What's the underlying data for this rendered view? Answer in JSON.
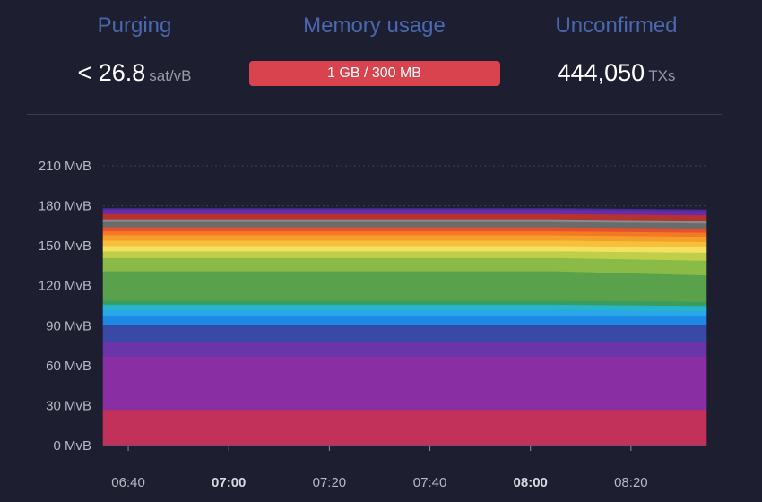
{
  "stats": {
    "purging": {
      "label": "Purging",
      "value": "< 26.8",
      "unit": "sat/vB"
    },
    "memory": {
      "label": "Memory usage",
      "value": "1 GB / 300 MB",
      "fill_fraction": 1.0,
      "bar_color": "#d9434d"
    },
    "unconfirmed": {
      "label": "Unconfirmed",
      "value": "444,050",
      "unit": "TXs"
    }
  },
  "chart_data": {
    "type": "area",
    "stacked": true,
    "x": [
      "06:35",
      "08:05",
      "08:35"
    ],
    "x_ticks": [
      {
        "label": "06:40",
        "bold": false
      },
      {
        "label": "07:00",
        "bold": true
      },
      {
        "label": "07:20",
        "bold": false
      },
      {
        "label": "07:40",
        "bold": false
      },
      {
        "label": "08:00",
        "bold": true
      },
      {
        "label": "08:20",
        "bold": false
      }
    ],
    "y_ticks": [
      "0 MvB",
      "30 MvB",
      "60 MvB",
      "90 MvB",
      "120 MvB",
      "150 MvB",
      "180 MvB",
      "210 MvB"
    ],
    "ylim": [
      0,
      210
    ],
    "grid": "dotted",
    "series": [
      {
        "color": "#c2315a",
        "values": [
          27,
          27,
          27
        ]
      },
      {
        "color": "#8a2fa3",
        "values": [
          40,
          40,
          40
        ]
      },
      {
        "color": "#6a35a8",
        "values": [
          11,
          11,
          11
        ]
      },
      {
        "color": "#3949a8",
        "values": [
          13,
          13,
          13
        ]
      },
      {
        "color": "#1e88e5",
        "values": [
          6,
          6,
          6
        ]
      },
      {
        "color": "#29a7e8",
        "values": [
          5,
          5,
          4
        ]
      },
      {
        "color": "#26b5c9",
        "values": [
          4,
          4,
          4
        ]
      },
      {
        "color": "#3b9b5c",
        "values": [
          3,
          3,
          3
        ]
      },
      {
        "color": "#59a14a",
        "values": [
          22,
          22,
          20
        ]
      },
      {
        "color": "#8bbb47",
        "values": [
          10,
          10,
          11
        ]
      },
      {
        "color": "#c0cf4a",
        "values": [
          5,
          5,
          6
        ]
      },
      {
        "color": "#f4e163",
        "values": [
          4,
          4,
          4
        ]
      },
      {
        "color": "#f8c03a",
        "values": [
          4,
          4,
          4
        ]
      },
      {
        "color": "#f59e2b",
        "values": [
          4,
          4,
          4
        ]
      },
      {
        "color": "#f27a25",
        "values": [
          3,
          3,
          3
        ]
      },
      {
        "color": "#e8502c",
        "values": [
          3,
          3,
          3
        ]
      },
      {
        "color": "#6b6b6b",
        "values": [
          4,
          4,
          4
        ]
      },
      {
        "color": "#8a8a8a",
        "values": [
          2,
          2,
          2
        ]
      },
      {
        "color": "#b5322f",
        "values": [
          4,
          4,
          4
        ]
      },
      {
        "color": "#6e2aa6",
        "values": [
          3,
          3,
          3
        ]
      },
      {
        "color": "#4a2f9c",
        "values": [
          1,
          1,
          1
        ]
      }
    ]
  }
}
